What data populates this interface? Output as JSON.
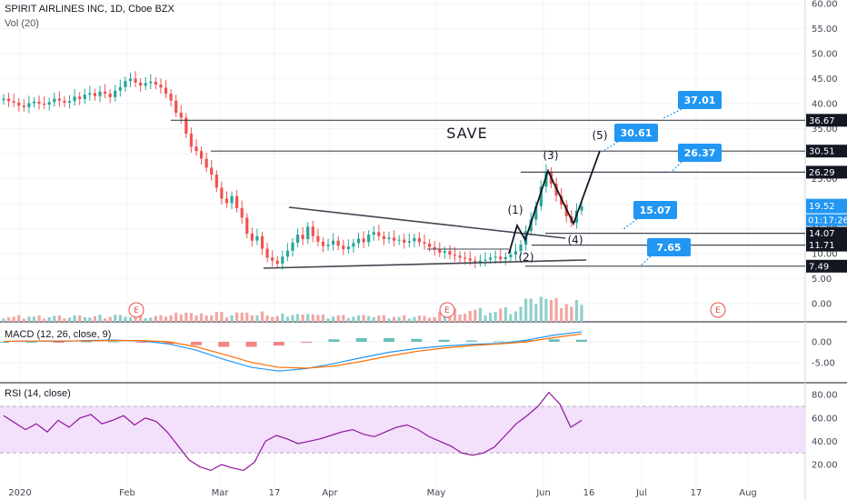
{
  "header": {
    "symbol_line": "SPIRIT AIRLINES INC, 1D, Cboe BZX",
    "volume_label": "Vol (20)",
    "macd_label": "MACD (12, 26, close, 9)",
    "rsi_label": "RSI (14, close)"
  },
  "colors": {
    "up": "#26a69a",
    "down": "#ef5350",
    "vol_up": "#8fd0c9",
    "vol_down": "#f2a6a4",
    "macd_line": "#2196f3",
    "signal_line": "#ff6d00",
    "rsi_line": "#8e1599",
    "rsi_band": "#f3e0fb",
    "callout": "#2196f3",
    "price_tag": "#2196f3"
  },
  "annotations": {
    "save_text": "SAVE",
    "wave_labels": [
      "(1)",
      "(2)",
      "(3)",
      "(4)",
      "(5)"
    ],
    "callouts": [
      "37.01",
      "30.61",
      "26.37",
      "15.07",
      "7.65"
    ],
    "earnings_marker": "E"
  },
  "chart_data": [
    {
      "type": "candlestick",
      "title": "SPIRIT AIRLINES INC, 1D, Cboe BZX",
      "x_tick_labels": [
        "2020",
        "Feb",
        "Mar",
        "17",
        "Apr",
        "May",
        "Jun",
        "16",
        "Jul",
        "17",
        "Aug"
      ],
      "y_tick_labels": [
        "60.00",
        "55.00",
        "50.00",
        "45.00",
        "40.00",
        "35.00",
        "30.00",
        "25.00",
        "20.00",
        "15.00",
        "10.00",
        "5.00",
        "0.00"
      ],
      "ylim": [
        0,
        60
      ],
      "last_price": "19.52",
      "countdown": "01:17:26",
      "horizontal_levels": [
        36.67,
        30.51,
        26.29,
        14.07,
        11.71,
        7.49
      ],
      "close_by_month": [
        {
          "month": "Jan",
          "close": [
            41,
            40.5,
            40.2,
            39.6,
            39.3,
            40.1,
            40.4,
            40.0,
            39.8,
            40.3,
            41.0,
            40.6,
            40.2,
            40.5,
            41.4,
            40.9,
            41.8,
            42.1,
            41.5,
            42.4
          ]
        },
        {
          "month": "Feb",
          "close": [
            42.0,
            41.3,
            42.6,
            43.3,
            44.5,
            45.0,
            44.2,
            43.6,
            44.1,
            44.4,
            43.8,
            43.2,
            42.0,
            40.6,
            38.2,
            37.2,
            34.0,
            31.4,
            30.5
          ]
        },
        {
          "month": "Mar",
          "close": [
            29.0,
            27.2,
            25.8,
            23.2,
            21.0,
            20.1,
            21.5,
            19.1,
            17.2,
            14.0,
            12.6,
            13.5,
            11.0,
            9.2,
            8.6,
            8.0,
            9.4,
            10.6,
            12.2,
            13.8,
            12.9,
            15.4
          ]
        },
        {
          "month": "Apr",
          "close": [
            13.5,
            12.4,
            11.5,
            11.8,
            12.6,
            11.6,
            10.9,
            11.4,
            12.1,
            13.0,
            12.3,
            13.8,
            14.3,
            13.5,
            12.9,
            13.2,
            12.6,
            12.8,
            12.2,
            12.5,
            13.1,
            12.3
          ]
        },
        {
          "month": "May",
          "close": [
            12.0,
            11.3,
            10.8,
            10.2,
            10.5,
            9.8,
            9.6,
            9.2,
            9.0,
            8.6,
            8.3,
            8.6,
            8.8,
            9.2,
            9.4,
            8.9,
            9.3,
            9.8,
            10.5,
            11.8
          ]
        },
        {
          "month": "Jun",
          "close": [
            14.5,
            16.8,
            19.5,
            23.4,
            26.4,
            24.0,
            21.6,
            19.8,
            17.5,
            16.2,
            18.6,
            19.52
          ]
        }
      ],
      "volume_scale_note": "relative volume bars"
    },
    {
      "type": "line",
      "title": "MACD (12, 26, close, 9)",
      "y_tick_labels": [
        "0.00",
        "-5.00"
      ],
      "series": [
        {
          "name": "MACD",
          "values": [
            0.1,
            0.2,
            0.1,
            0.3,
            0.4,
            0.2,
            -0.5,
            -2.0,
            -4.2,
            -6.1,
            -7.0,
            -6.4,
            -5.2,
            -3.8,
            -2.5,
            -1.6,
            -1.0,
            -0.6,
            -0.4,
            0.4,
            1.6,
            2.4
          ]
        },
        {
          "name": "Signal",
          "values": [
            0.1,
            0.2,
            0.2,
            0.2,
            0.3,
            0.3,
            0.0,
            -1.2,
            -3.0,
            -4.9,
            -6.1,
            -6.3,
            -5.8,
            -4.7,
            -3.4,
            -2.3,
            -1.5,
            -0.9,
            -0.5,
            0.0,
            1.0,
            1.9
          ]
        }
      ]
    },
    {
      "type": "line",
      "title": "RSI (14, close)",
      "y_tick_labels": [
        "80.00",
        "60.00",
        "40.00",
        "20.00"
      ],
      "ylim": [
        10,
        90
      ],
      "band": [
        30,
        70
      ],
      "series": [
        {
          "name": "RSI",
          "values": [
            62,
            56,
            50,
            55,
            48,
            58,
            52,
            60,
            63,
            55,
            58,
            62,
            54,
            60,
            57,
            48,
            36,
            24,
            18,
            15,
            20,
            17,
            15,
            22,
            40,
            45,
            42,
            38,
            40,
            42,
            45,
            48,
            50,
            46,
            44,
            48,
            52,
            54,
            50,
            44,
            40,
            36,
            30,
            28,
            30,
            35,
            45,
            55,
            62,
            70,
            82,
            72,
            52,
            58
          ]
        }
      ]
    }
  ]
}
